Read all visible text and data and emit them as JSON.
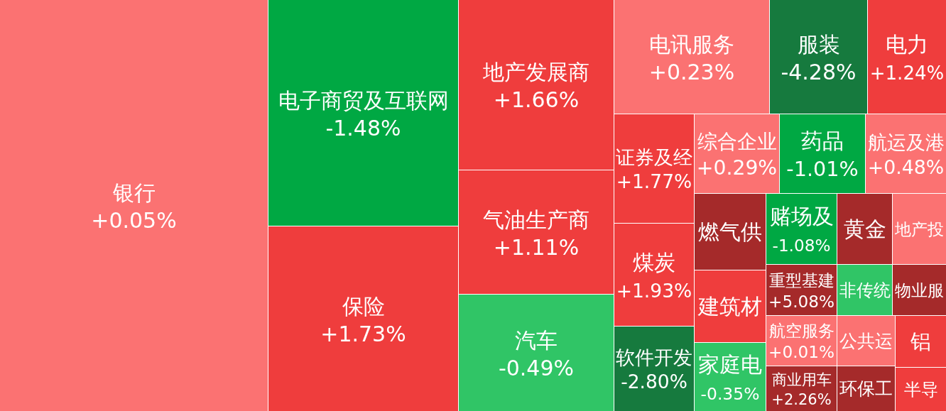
{
  "chart_data": {
    "type": "other",
    "categories": [
      "银行",
      "电子商贸及互联网",
      "保险",
      "地产发展商",
      "气油生产商",
      "汽车",
      "电讯服务",
      "服装",
      "电力",
      "证券及经",
      "综合企业",
      "药品",
      "航运及港",
      "煤炭",
      "软件开发",
      "燃气供",
      "建筑材",
      "家庭电",
      "赌场及",
      "黄金",
      "地产投",
      "重型基建",
      "非传统",
      "物业服",
      "航空服务",
      "公共运",
      "铝",
      "商业用车",
      "环保工",
      "半导"
    ],
    "values": [
      0.05,
      -1.48,
      1.73,
      1.66,
      1.11,
      -0.49,
      0.23,
      -4.28,
      1.24,
      1.77,
      0.29,
      -1.01,
      0.48,
      1.93,
      -2.8,
      null,
      null,
      -0.35,
      -1.08,
      null,
      null,
      5.08,
      null,
      null,
      0.01,
      null,
      null,
      2.26,
      null,
      null
    ],
    "value_labels": [
      "+0.05%",
      "-1.48%",
      "+1.73%",
      "+1.66%",
      "+1.11%",
      "-0.49%",
      "+0.23%",
      "-4.28%",
      "+1.24%",
      "+1.77%",
      "+0.29%",
      "-1.01%",
      "+0.48%",
      "+1.93%",
      "-2.80%",
      null,
      null,
      "-0.35%",
      "-1.08%",
      null,
      null,
      "+5.08%",
      null,
      null,
      "+0.01%",
      null,
      null,
      "+2.26%",
      null,
      null
    ],
    "colors": [
      "#fb7272",
      "#00a843",
      "#ef3d3d",
      "#ef3d3d",
      "#ef3d3d",
      "#30c566",
      "#fb7272",
      "#167a3e",
      "#ef3d3d",
      "#ef3d3d",
      "#fb7272",
      "#00a843",
      "#fb7272",
      "#ef3d3d",
      "#167a3e",
      "#a52a2a",
      "#ef3d3d",
      "#30c566",
      "#00a843",
      "#a52a2a",
      "#fb7272",
      "#a52a2a",
      "#30c566",
      "#a52a2a",
      "#fb7272",
      "#fb7272",
      "#ef3d3d",
      "#a52a2a",
      "#a52a2a",
      "#ef3d3d"
    ]
  }
}
